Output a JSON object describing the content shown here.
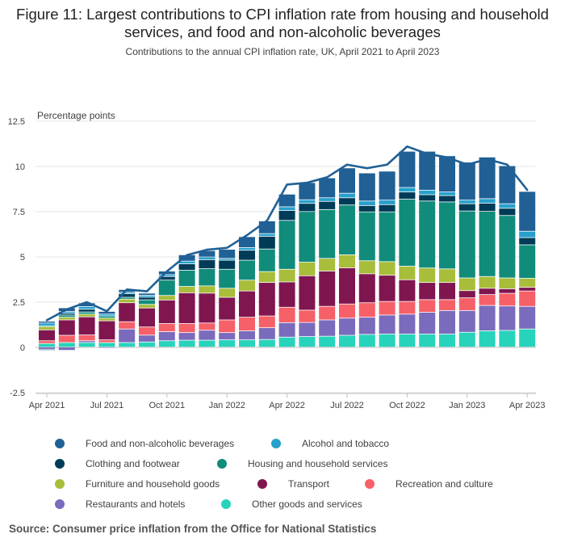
{
  "title": "Figure 11: Largest contributions to CPI inflation rate from housing and household services, and food and non-alcoholic beverages",
  "subtitle": "Contributions to the annual CPI inflation rate, UK, April 2021 to April 2023",
  "source": "Source: Consumer price inflation from the Office for National Statistics",
  "chart_data": {
    "type": "bar",
    "stacked": true,
    "ylabel": "Percentage points",
    "ylim": [
      -2.5,
      12.5
    ],
    "yticks": [
      "12.5",
      "10",
      "7.5",
      "5",
      "2.5",
      "0",
      "-2.5"
    ],
    "ytick_values": [
      12.5,
      10,
      7.5,
      5,
      2.5,
      0,
      -2.5
    ],
    "grid": true,
    "legend_position": "bottom",
    "categories": [
      "Apr 2021",
      "May 2021",
      "Jun 2021",
      "Jul 2021",
      "Aug 2021",
      "Sep 2021",
      "Oct 2021",
      "Nov 2021",
      "Dec 2021",
      "Jan 2022",
      "Feb 2022",
      "Mar 2022",
      "Apr 2022",
      "May 2022",
      "Jun 2022",
      "Jul 2022",
      "Aug 2022",
      "Sep 2022",
      "Oct 2022",
      "Nov 2022",
      "Dec 2022",
      "Jan 2023",
      "Feb 2023",
      "Mar 2023",
      "Apr 2023"
    ],
    "xtick_labels": [
      "Apr 2021",
      "Jul 2021",
      "Oct 2021",
      "Jan 2022",
      "Apr 2022",
      "Jul 2022",
      "Oct 2022",
      "Jan 2023",
      "Apr 2023"
    ],
    "xtick_index": [
      0,
      3,
      6,
      9,
      12,
      15,
      18,
      21,
      24
    ],
    "series": [
      {
        "name": "Other goods and services",
        "color": "#27d3bb",
        "values": [
          0.2,
          0.25,
          0.25,
          0.25,
          0.25,
          0.28,
          0.35,
          0.38,
          0.38,
          0.4,
          0.4,
          0.42,
          0.55,
          0.58,
          0.6,
          0.65,
          0.7,
          0.72,
          0.72,
          0.72,
          0.72,
          0.82,
          0.9,
          0.92,
          1.0
        ]
      },
      {
        "name": "Restaurants and hotels",
        "color": "#7a6bbd",
        "values": [
          -0.12,
          -0.18,
          0.1,
          -0.05,
          0.75,
          0.38,
          0.5,
          0.42,
          0.55,
          0.4,
          0.5,
          0.65,
          0.8,
          0.78,
          0.9,
          0.95,
          0.95,
          1.05,
          1.1,
          1.2,
          1.3,
          1.2,
          1.4,
          1.35,
          1.25
        ]
      },
      {
        "name": "Recreation and culture",
        "color": "#f66068",
        "values": [
          0.15,
          0.4,
          0.32,
          0.15,
          0.4,
          0.45,
          0.45,
          0.5,
          0.4,
          0.7,
          0.75,
          0.65,
          0.85,
          0.68,
          0.75,
          0.78,
          0.8,
          0.75,
          0.7,
          0.7,
          0.6,
          0.7,
          0.6,
          0.7,
          0.85
        ]
      },
      {
        "name": "Transport",
        "color": "#801650",
        "values": [
          0.6,
          0.85,
          1.0,
          1.05,
          1.05,
          1.05,
          1.3,
          1.7,
          1.65,
          1.25,
          1.45,
          1.85,
          1.4,
          1.9,
          1.95,
          2.0,
          1.6,
          1.45,
          1.2,
          0.95,
          0.95,
          0.4,
          0.35,
          0.25,
          0.2
        ]
      },
      {
        "name": "Furniture and household goods",
        "color": "#a8bd3a",
        "values": [
          0.18,
          0.15,
          0.15,
          0.15,
          0.2,
          0.2,
          0.25,
          0.35,
          0.4,
          0.5,
          0.6,
          0.6,
          0.7,
          0.75,
          0.7,
          0.72,
          0.72,
          0.75,
          0.75,
          0.8,
          0.75,
          0.7,
          0.65,
          0.6,
          0.5
        ]
      },
      {
        "name": "Housing and household services",
        "color": "#118c7b",
        "values": [
          0.05,
          0.12,
          0.12,
          0.12,
          0.1,
          0.25,
          0.85,
          0.9,
          0.95,
          1.05,
          1.1,
          1.25,
          2.7,
          2.8,
          2.7,
          2.75,
          2.7,
          2.75,
          3.7,
          3.7,
          3.7,
          3.7,
          3.6,
          3.45,
          1.85
        ]
      },
      {
        "name": "Clothing and footwear",
        "color": "#003c57",
        "values": [
          -0.05,
          0.1,
          0.15,
          0.0,
          0.2,
          0.15,
          0.2,
          0.35,
          0.5,
          0.5,
          0.55,
          0.7,
          0.55,
          0.45,
          0.45,
          0.4,
          0.35,
          0.4,
          0.4,
          0.35,
          0.35,
          0.4,
          0.45,
          0.4,
          0.4
        ]
      },
      {
        "name": "Alcohol and tobacco",
        "color": "#27a0cc",
        "values": [
          0.15,
          0.1,
          0.15,
          0.1,
          0.08,
          0.1,
          0.1,
          0.15,
          0.15,
          0.1,
          0.15,
          0.15,
          0.2,
          0.2,
          0.2,
          0.25,
          0.25,
          0.25,
          0.25,
          0.25,
          0.2,
          0.2,
          0.25,
          0.25,
          0.35
        ]
      },
      {
        "name": "Food and non-alcoholic beverages",
        "color": "#206095",
        "values": [
          0.1,
          0.2,
          0.2,
          0.15,
          0.15,
          0.12,
          0.2,
          0.35,
          0.35,
          0.5,
          0.6,
          0.7,
          0.7,
          0.95,
          1.1,
          1.4,
          1.55,
          1.6,
          2.0,
          2.15,
          2.0,
          2.1,
          2.3,
          2.1,
          2.2
        ]
      }
    ],
    "line": {
      "name": "CPI inflation rate",
      "color": "#206095",
      "values": [
        1.5,
        2.1,
        2.5,
        2.0,
        3.2,
        3.1,
        4.2,
        5.1,
        5.4,
        5.5,
        6.2,
        7.0,
        9.0,
        9.1,
        9.4,
        10.1,
        9.9,
        10.1,
        11.1,
        10.7,
        10.5,
        10.1,
        10.4,
        10.1,
        8.7
      ]
    }
  },
  "legend_order": [
    "Food and non-alcoholic beverages",
    "Alcohol and tobacco",
    "Clothing and footwear",
    "Housing and household services",
    "Furniture and household goods",
    "Transport",
    "Recreation and culture",
    "Restaurants and hotels",
    "Other goods and services"
  ]
}
